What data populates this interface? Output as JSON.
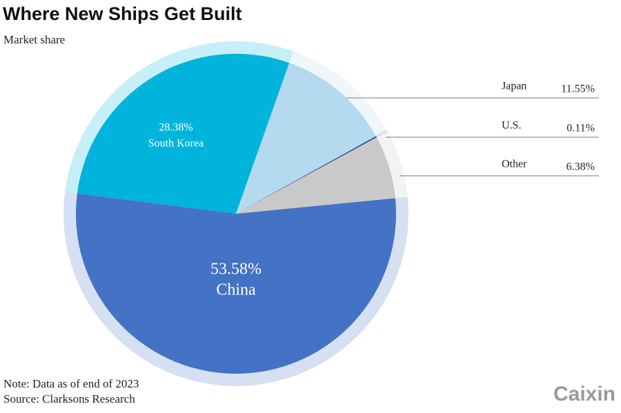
{
  "chart_data": {
    "type": "pie",
    "title": "Where New Ships Get Built",
    "subtitle": "Market share",
    "categories": [
      "China",
      "South Korea",
      "Japan",
      "U.S.",
      "Other"
    ],
    "values": [
      53.58,
      28.38,
      11.55,
      0.11,
      6.38
    ],
    "value_labels": [
      "53.58%",
      "28.38%",
      "11.55%",
      "0.11%",
      "6.38%"
    ],
    "colors": [
      "#4472c4",
      "#00b4dc",
      "#b5d9ee",
      "#1b2b6e",
      "#c9c9c9"
    ],
    "note": "Note: Data as of end of 2023",
    "source": "Source: Clarksons Research"
  },
  "logo": "Caixin"
}
